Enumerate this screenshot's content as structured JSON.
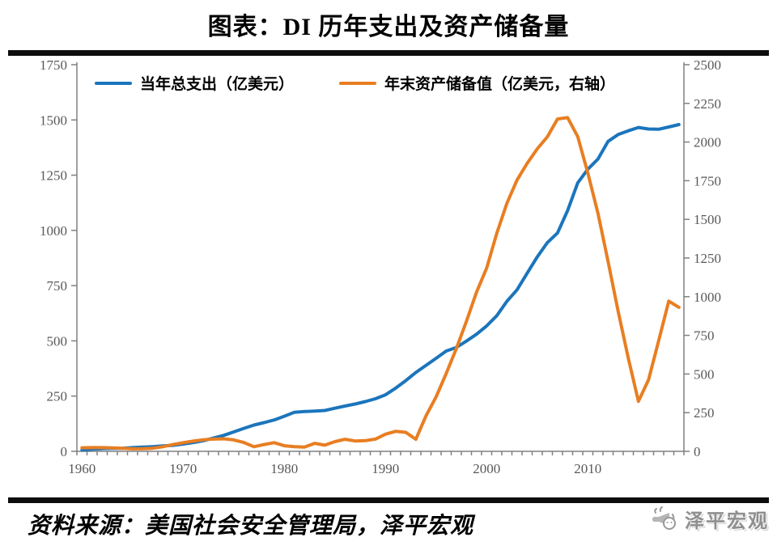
{
  "footer": {
    "source": "资料来源：美国社会安全管理局，泽平宏观",
    "logo_text": "泽平宏观",
    "logo_icon": "megaphone-icon",
    "logo_color": "#8f8f8f"
  },
  "chart_data": {
    "type": "line",
    "title": "图表：DI 历年支出及资产储备量",
    "grid": false,
    "legend_position": "top",
    "style": {
      "axis_color": "#808080",
      "tick_label_color": "#595959",
      "rule_color": "#0d0d0d"
    },
    "x": [
      1960,
      1961,
      1962,
      1963,
      1964,
      1965,
      1966,
      1967,
      1968,
      1969,
      1970,
      1971,
      1972,
      1973,
      1974,
      1975,
      1976,
      1977,
      1978,
      1979,
      1980,
      1981,
      1982,
      1983,
      1984,
      1985,
      1986,
      1987,
      1988,
      1989,
      1990,
      1991,
      1992,
      1993,
      1994,
      1995,
      1996,
      1997,
      1998,
      1999,
      2000,
      2001,
      2002,
      2003,
      2004,
      2005,
      2006,
      2007,
      2008,
      2009,
      2010,
      2011,
      2012,
      2013,
      2014,
      2015,
      2016,
      2017,
      2018,
      2019
    ],
    "x_tick_labels": [
      "1960",
      "1970",
      "1980",
      "1990",
      "2000",
      "2010"
    ],
    "left_axis": {
      "min": 0,
      "max": 1750,
      "tick_step": 250,
      "ticks": [
        "0",
        "250",
        "500",
        "750",
        "1000",
        "1250",
        "1500",
        "1750"
      ]
    },
    "right_axis": {
      "min": 0,
      "max": 2500,
      "tick_step": 250,
      "ticks": [
        "0",
        "250",
        "500",
        "750",
        "1000",
        "1250",
        "1500",
        "1750",
        "2000",
        "2250",
        "2500"
      ]
    },
    "series": [
      {
        "name": "当年总支出（亿美元）",
        "axis": "left",
        "color": "#1B75BC",
        "values": [
          6,
          10,
          12,
          13,
          14,
          17,
          19,
          21,
          25,
          27,
          33,
          40,
          48,
          60,
          72,
          88,
          104,
          119,
          130,
          142,
          159,
          177,
          180,
          182,
          185,
          195,
          205,
          214,
          225,
          238,
          256,
          286,
          320,
          357,
          389,
          421,
          454,
          470,
          499,
          530,
          568,
          614,
          679,
          731,
          806,
          880,
          945,
          988,
          1090,
          1215,
          1277,
          1323,
          1403,
          1434,
          1451,
          1466,
          1459,
          1458,
          1468,
          1479
        ]
      },
      {
        "name": "年末资产储备值（亿美元，右轴）",
        "axis": "right",
        "color": "#E87E22",
        "values": [
          23,
          24,
          24,
          22,
          20,
          16,
          17,
          20,
          30,
          44,
          56,
          66,
          75,
          79,
          81,
          74,
          57,
          30,
          44,
          56,
          36,
          30,
          27,
          52,
          40,
          63,
          78,
          67,
          69,
          79,
          111,
          129,
          123,
          78,
          229,
          352,
          503,
          664,
          841,
          1030,
          1185,
          1410,
          1604,
          1754,
          1862,
          1956,
          2034,
          2149,
          2158,
          2035,
          1799,
          1539,
          1227,
          904,
          602,
          323,
          463,
          715,
          971,
          931
        ]
      }
    ]
  }
}
